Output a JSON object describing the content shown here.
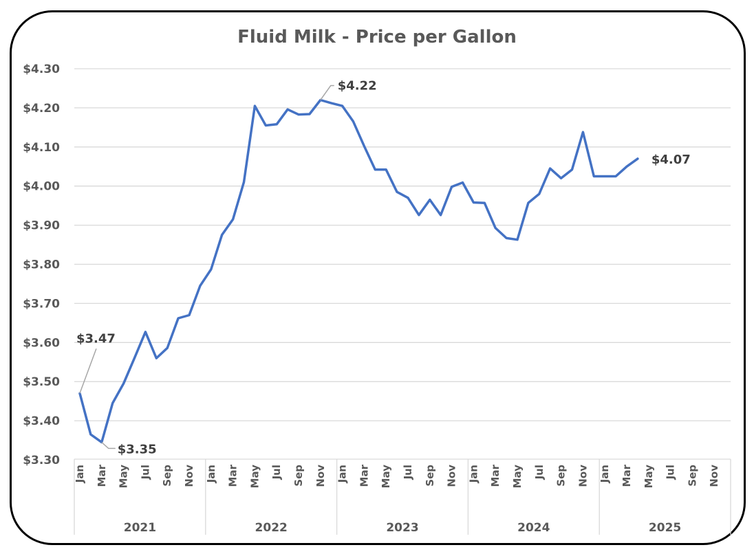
{
  "chart_data": {
    "type": "line",
    "title": "Fluid Milk - Price per Gallon",
    "xlabel": "",
    "ylabel": "",
    "ylim": [
      3.3,
      4.3
    ],
    "yticks": [
      3.3,
      3.4,
      3.5,
      3.6,
      3.7,
      3.8,
      3.9,
      4.0,
      4.1,
      4.2,
      4.3
    ],
    "ytick_labels": [
      "$3.30",
      "$3.40",
      "$3.50",
      "$3.60",
      "$3.70",
      "$3.80",
      "$3.90",
      "$4.00",
      "$4.10",
      "$4.20",
      "$4.30"
    ],
    "grid": true,
    "legend": "none",
    "line_color": "#4472C4",
    "years": [
      "2021",
      "2022",
      "2023",
      "2024",
      "2025"
    ],
    "months_per_year": 12,
    "month_tick_labels": [
      "Jan",
      "Mar",
      "May",
      "Jul",
      "Sep",
      "Nov"
    ],
    "series": [
      {
        "name": "Fluid Milk Price per Gallon",
        "values": [
          3.47,
          3.365,
          3.345,
          3.445,
          3.495,
          3.56,
          3.627,
          3.56,
          3.586,
          3.662,
          3.67,
          3.745,
          3.787,
          3.875,
          3.915,
          4.01,
          4.205,
          4.155,
          4.158,
          4.196,
          4.183,
          4.184,
          4.22,
          4.212,
          4.205,
          4.165,
          4.102,
          4.042,
          4.042,
          3.985,
          3.97,
          3.926,
          3.965,
          3.926,
          3.998,
          4.009,
          3.958,
          3.957,
          3.893,
          3.867,
          3.863,
          3.957,
          3.98,
          4.045,
          4.02,
          4.042,
          4.138,
          4.025,
          4.025,
          4.025,
          4.05,
          4.07
        ]
      }
    ],
    "annotations": [
      {
        "index": 0,
        "text": "$3.47",
        "position": "above"
      },
      {
        "index": 2,
        "text": "$3.35",
        "position": "below-right"
      },
      {
        "index": 22,
        "text": "$4.22",
        "position": "above-right"
      },
      {
        "index": 51,
        "text": "$4.07",
        "position": "right"
      }
    ]
  }
}
